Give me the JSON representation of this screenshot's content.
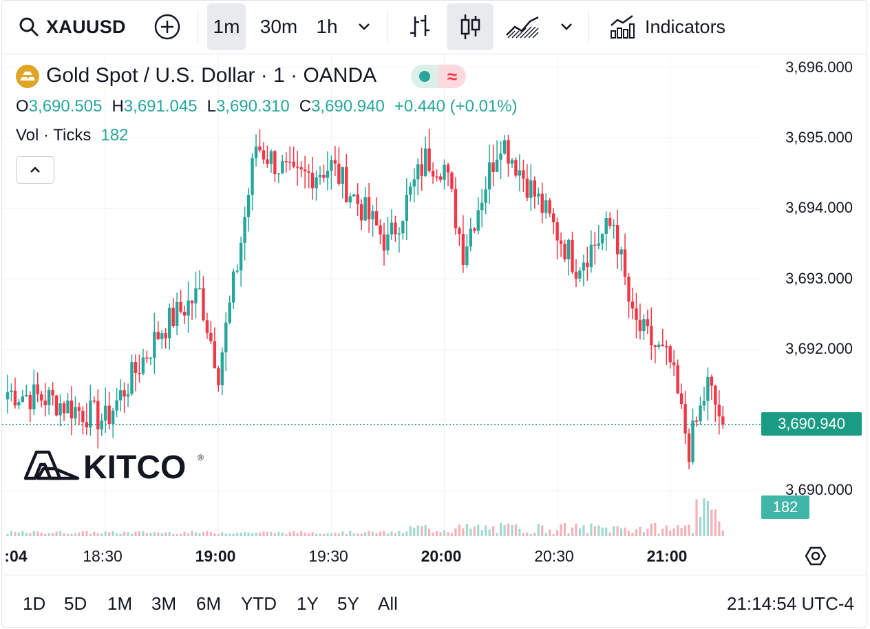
{
  "toolbar": {
    "symbol": "XAUUSD",
    "intervals": [
      "1m",
      "30m",
      "1h"
    ],
    "active_interval": "1m",
    "indicators_label": "Indicators"
  },
  "legend": {
    "title": "Gold Spot / U.S. Dollar · 1 · OANDA",
    "open_key": "O",
    "open": "3,690.505",
    "high_key": "H",
    "high": "3,691.045",
    "low_key": "L",
    "low": "3,690.310",
    "close_key": "C",
    "close": "3,690.940",
    "change": "+0.440 (+0.01%)",
    "vol_label": "Vol · Ticks",
    "vol_value": "182",
    "status_pill_icon": "≈"
  },
  "price_axis": {
    "ticks": [
      "3,696.000",
      "3,695.000",
      "3,694.000",
      "3,693.000",
      "3,692.000",
      "3,690.000"
    ],
    "last_price": "3,690.940",
    "last_volume": "182"
  },
  "time_axis": {
    "ticks": [
      ":04",
      "18:30",
      "19:00",
      "19:30",
      "20:00",
      "20:30",
      "21:00"
    ]
  },
  "watermark": {
    "text": "KITCO",
    "mark": "®"
  },
  "bottom": {
    "ranges": [
      "1D",
      "5D",
      "1M",
      "3M",
      "6M",
      "YTD",
      "1Y",
      "5Y",
      "All"
    ],
    "clock": "21:14:54 UTC-4"
  },
  "colors": {
    "up": "#26a69a",
    "down": "#f23645",
    "price_tag": "#1a9c84"
  },
  "chart_data": {
    "type": "candlestick",
    "symbol": "XAUUSD",
    "interval": "1m",
    "x_range": [
      "18:04",
      "21:14"
    ],
    "ylim": [
      3689.5,
      3696.2
    ],
    "close_path": [
      {
        "time": "18:04",
        "close": 3691.4
      },
      {
        "time": "18:15",
        "close": 3691.3
      },
      {
        "time": "18:30",
        "close": 3691.0
      },
      {
        "time": "18:45",
        "close": 3692.3
      },
      {
        "time": "18:55",
        "close": 3692.8
      },
      {
        "time": "19:00",
        "close": 3691.7
      },
      {
        "time": "19:05",
        "close": 3693.2
      },
      {
        "time": "19:10",
        "close": 3694.9
      },
      {
        "time": "19:20",
        "close": 3694.4
      },
      {
        "time": "19:30",
        "close": 3694.6
      },
      {
        "time": "19:45",
        "close": 3693.5
      },
      {
        "time": "19:55",
        "close": 3694.7
      },
      {
        "time": "20:00",
        "close": 3694.6
      },
      {
        "time": "20:05",
        "close": 3693.4
      },
      {
        "time": "20:15",
        "close": 3695.0
      },
      {
        "time": "20:25",
        "close": 3694.1
      },
      {
        "time": "20:35",
        "close": 3693.2
      },
      {
        "time": "20:45",
        "close": 3693.8
      },
      {
        "time": "20:50",
        "close": 3692.4
      },
      {
        "time": "21:00",
        "close": 3691.8
      },
      {
        "time": "21:05",
        "close": 3690.6
      },
      {
        "time": "21:10",
        "close": 3691.5
      },
      {
        "time": "21:14",
        "close": 3690.94
      }
    ]
  }
}
